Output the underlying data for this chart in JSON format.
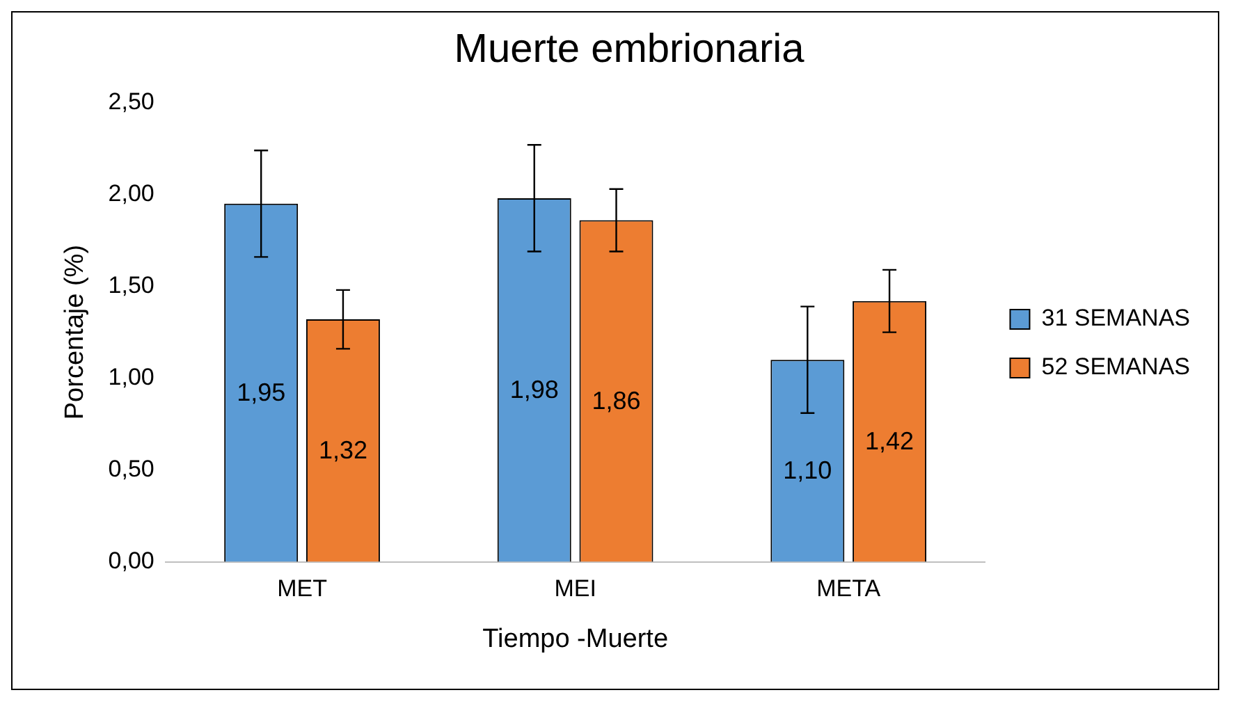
{
  "chart_data": {
    "type": "bar",
    "title": "Muerte embrionaria",
    "xlabel": "Tiempo -Muerte",
    "ylabel": "Porcentaje (%)",
    "categories": [
      "MET",
      "MEI",
      "META"
    ],
    "series": [
      {
        "name": "31 SEMANAS",
        "color": "#5b9bd5",
        "values": [
          1.95,
          1.98,
          1.1
        ],
        "errors": [
          0.29,
          0.29,
          0.29
        ],
        "value_labels": [
          "1,95",
          "1,98",
          "1,10"
        ]
      },
      {
        "name": "52 SEMANAS",
        "color": "#ed7d31",
        "values": [
          1.32,
          1.86,
          1.42
        ],
        "errors": [
          0.16,
          0.17,
          0.17
        ],
        "value_labels": [
          "1,32",
          "1,86",
          "1,42"
        ]
      }
    ],
    "ylim": [
      0,
      2.5
    ],
    "yticks": [
      {
        "value": 0,
        "label": "0,00"
      },
      {
        "value": 0.5,
        "label": "0,50"
      },
      {
        "value": 1,
        "label": "1,00"
      },
      {
        "value": 1.5,
        "label": "1,50"
      },
      {
        "value": 2,
        "label": "2,00"
      },
      {
        "value": 2.5,
        "label": "2,50"
      }
    ],
    "grid": false,
    "legend": "right"
  }
}
